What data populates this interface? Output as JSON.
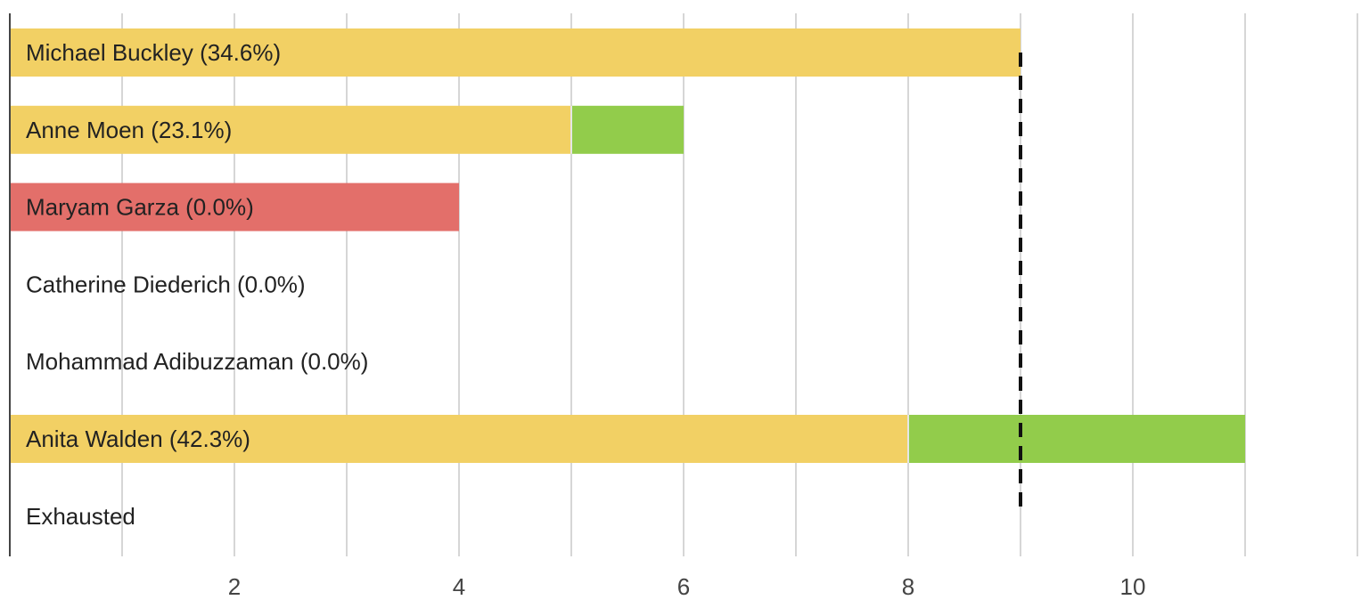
{
  "chart_data": {
    "type": "bar",
    "orientation": "horizontal",
    "stacked": true,
    "categories": [
      "Michael Buckley (34.6%)",
      "Anne Moen (23.1%)",
      "Maryam Garza (0.0%)",
      "Catherine Diederich (0.0%)",
      "Mohammad Adibuzzaman (0.0%)",
      "Anita Walden (42.3%)",
      "Exhausted"
    ],
    "series": [
      {
        "color": "#f2d064",
        "values": [
          9,
          5,
          0,
          0,
          0,
          8,
          0
        ]
      },
      {
        "color": "#92cc4b",
        "values": [
          0,
          1,
          0,
          0,
          0,
          3,
          0
        ]
      },
      {
        "color": "#e36f6a",
        "values": [
          0,
          0,
          4,
          0,
          0,
          0,
          0
        ]
      }
    ],
    "x_ticks": [
      "2",
      "4",
      "6",
      "8",
      "10"
    ],
    "xlim": [
      0,
      12
    ],
    "threshold": 9,
    "grid": true,
    "legend": "none"
  }
}
